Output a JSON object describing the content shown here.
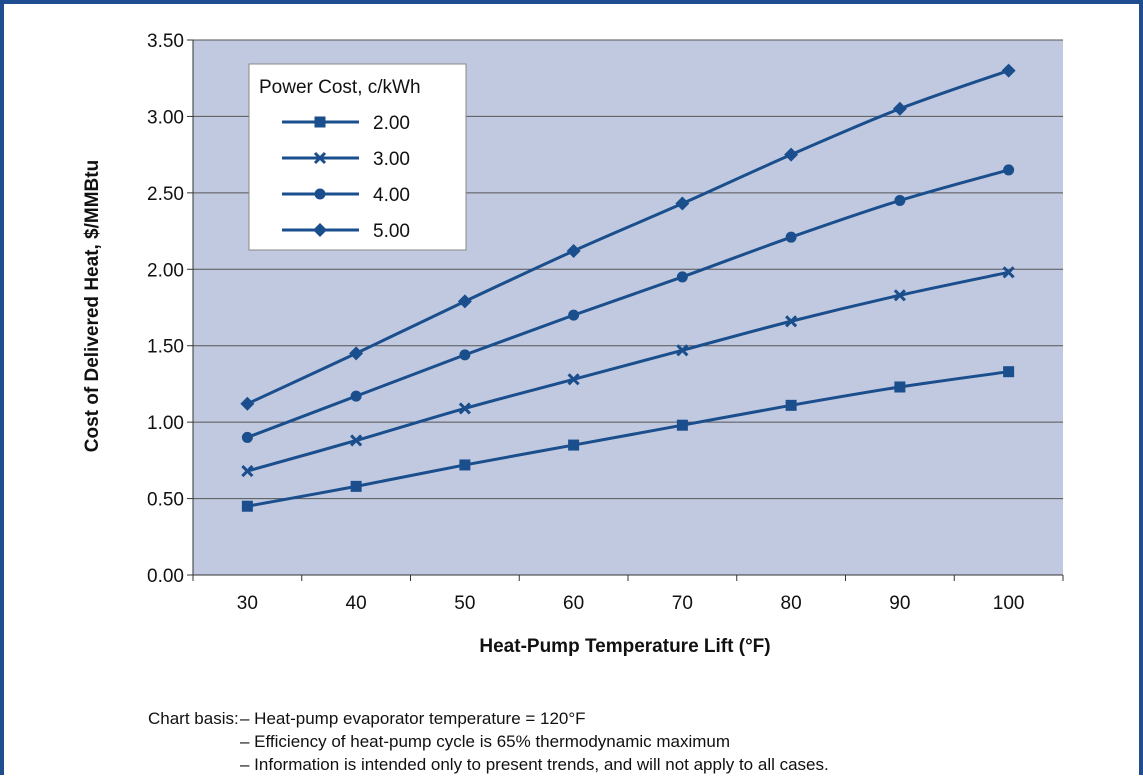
{
  "chart_data": {
    "type": "line",
    "title": "",
    "xlabel": "Heat-Pump Temperature Lift (°F)",
    "ylabel": "Cost of Delivered Heat, $/MMBtu",
    "x": [
      30,
      40,
      50,
      60,
      70,
      80,
      90,
      100
    ],
    "xlim": [
      25,
      105
    ],
    "ylim": [
      0,
      3.5
    ],
    "x_tick_labels": [
      "30",
      "40",
      "50",
      "60",
      "70",
      "80",
      "90",
      "100"
    ],
    "y_tick_labels": [
      "0.00",
      "0.50",
      "1.00",
      "1.50",
      "2.00",
      "2.50",
      "3.00",
      "3.50"
    ],
    "y_ticks": [
      0,
      0.5,
      1.0,
      1.5,
      2.0,
      2.5,
      3.0,
      3.5
    ],
    "grid": "horizontal",
    "legend_title": "Power Cost, c/kWh",
    "legend_placement": "top-left",
    "series": [
      {
        "name": "2.00",
        "marker": "square",
        "values": [
          0.45,
          0.58,
          0.72,
          0.85,
          0.98,
          1.11,
          1.23,
          1.33
        ]
      },
      {
        "name": "3.00",
        "marker": "x",
        "values": [
          0.68,
          0.88,
          1.09,
          1.28,
          1.47,
          1.66,
          1.83,
          1.98
        ]
      },
      {
        "name": "4.00",
        "marker": "circle",
        "values": [
          0.9,
          1.17,
          1.44,
          1.7,
          1.95,
          2.21,
          2.45,
          2.65
        ]
      },
      {
        "name": "5.00",
        "marker": "diamond",
        "values": [
          1.12,
          1.45,
          1.79,
          2.12,
          2.43,
          2.75,
          3.05,
          3.3
        ]
      }
    ],
    "colors": {
      "plot_bg": "#c0c9e0",
      "line": "#1a4e8c",
      "grid": "#555555",
      "frame": "#1f4d8f"
    }
  },
  "notes": {
    "label": "Chart basis:",
    "lines": [
      "– Heat-pump evaporator temperature = 120°F",
      "– Efficiency of heat-pump cycle is 65% thermodynamic maximum",
      "– Information is intended only to present trends, and will not apply to all cases."
    ]
  }
}
